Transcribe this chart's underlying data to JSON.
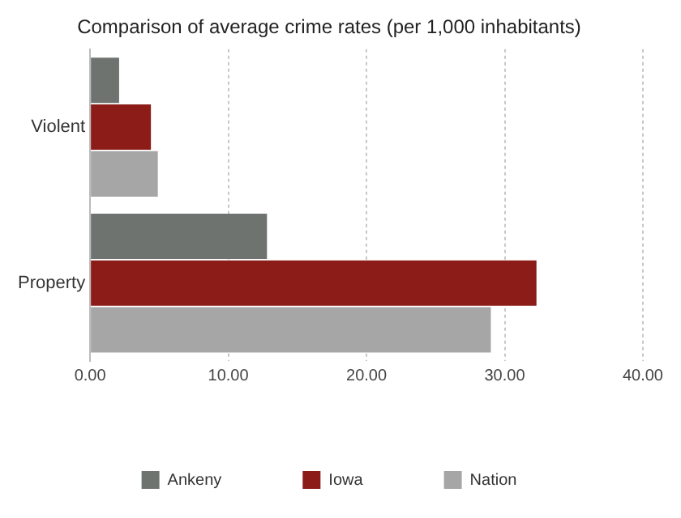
{
  "chart_data": {
    "type": "bar",
    "orientation": "horizontal",
    "title": "Comparison of average crime rates (per 1,000 inhabitants)",
    "categories": [
      "Violent",
      "Property"
    ],
    "series": [
      {
        "name": "Ankeny",
        "color": "#6f7370",
        "values": [
          2.1,
          12.8
        ]
      },
      {
        "name": "Iowa",
        "color": "#8b1c17",
        "values": [
          4.4,
          32.3
        ]
      },
      {
        "name": "Nation",
        "color": "#a6a6a6",
        "values": [
          4.9,
          29.0
        ]
      }
    ],
    "xlim": [
      0,
      40
    ],
    "xticks": [
      {
        "value": 0,
        "label": "0.00"
      },
      {
        "value": 10,
        "label": "10.00"
      },
      {
        "value": 20,
        "label": "20.00"
      },
      {
        "value": 30,
        "label": "30.00"
      },
      {
        "value": 40,
        "label": "40.00"
      }
    ],
    "grid": "x",
    "legend": "bottom"
  }
}
